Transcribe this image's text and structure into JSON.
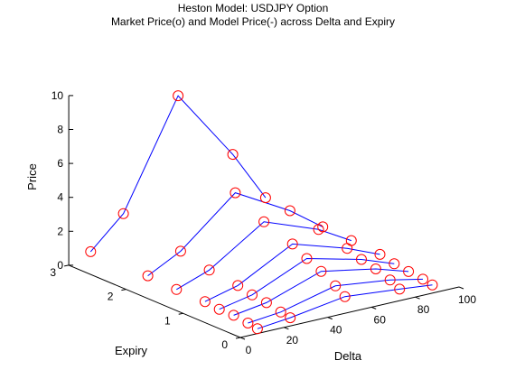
{
  "figure": {
    "title": "Heston Model: USDJPY Option",
    "subtitle": "Market Price(o) and Model Price(-) across Delta and Expiry"
  },
  "chart_data": {
    "type": "surface3d",
    "title": "Heston Model: USDJPY Option",
    "subtitle": "Market Price(o) and Model Price(-) across Delta and Expiry",
    "xlabel": "Delta",
    "ylabel": "Expiry",
    "zlabel": "Price",
    "xlim": [
      0,
      100
    ],
    "ylim": [
      0,
      3
    ],
    "zlim": [
      0,
      10
    ],
    "xticks": [
      "0",
      "20",
      "40",
      "60",
      "80",
      "100"
    ],
    "yticks": [
      "0",
      "1",
      "2",
      "3"
    ],
    "zticks": [
      "0",
      "2",
      "4",
      "6",
      "8",
      "10"
    ],
    "marker_color": "#ff0000",
    "line_color": "#0000ff",
    "delta": [
      10,
      25,
      50,
      75,
      90
    ],
    "expiries": [
      0.083,
      0.25,
      0.5,
      0.75,
      1,
      1.5,
      2,
      3
    ],
    "series": [
      {
        "expiry": 3,
        "market": [
          0.5,
          2.3,
          8.5,
          4.3,
          1.3
        ],
        "model": [
          0.5,
          2.3,
          8.5,
          4.3,
          1.3
        ]
      },
      {
        "expiry": 2,
        "market": [
          0.5,
          1.5,
          4.2,
          2.4,
          1.0
        ],
        "model": [
          0.5,
          1.5,
          4.2,
          2.4,
          1.0
        ]
      },
      {
        "expiry": 1.5,
        "market": [
          0.4,
          1.1,
          3.2,
          2.0,
          0.9
        ],
        "model": [
          0.4,
          1.1,
          3.2,
          2.0,
          0.9
        ]
      },
      {
        "expiry": 1,
        "market": [
          0.4,
          0.9,
          2.6,
          1.6,
          0.8
        ],
        "model": [
          0.4,
          0.9,
          2.6,
          1.6,
          0.8
        ]
      },
      {
        "expiry": 0.75,
        "market": [
          0.3,
          0.7,
          2.1,
          1.3,
          0.6
        ],
        "model": [
          0.3,
          0.7,
          2.1,
          1.3,
          0.6
        ]
      },
      {
        "expiry": 0.5,
        "market": [
          0.3,
          0.6,
          1.7,
          1.1,
          0.5
        ],
        "model": [
          0.3,
          0.6,
          1.7,
          1.1,
          0.5
        ]
      },
      {
        "expiry": 0.25,
        "market": [
          0.2,
          0.4,
          1.2,
          0.8,
          0.4
        ],
        "model": [
          0.2,
          0.4,
          1.2,
          0.8,
          0.4
        ]
      },
      {
        "expiry": 0.083,
        "market": [
          0.1,
          0.3,
          0.8,
          0.5,
          0.3
        ],
        "model": [
          0.1,
          0.3,
          0.8,
          0.5,
          0.3
        ]
      }
    ]
  }
}
